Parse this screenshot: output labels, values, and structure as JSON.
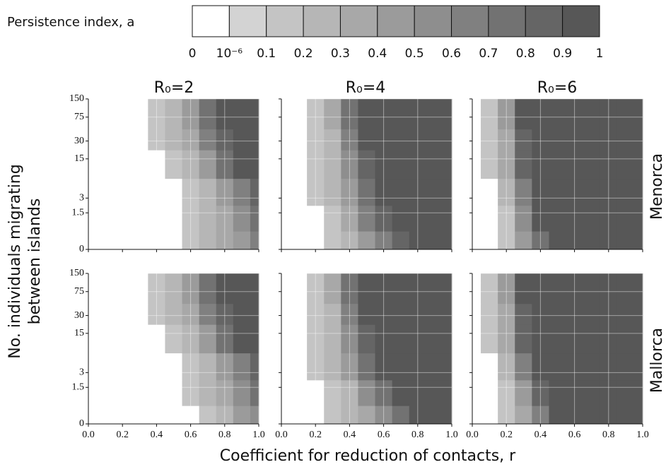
{
  "colorbar": {
    "label": "Persistence index, a",
    "ticks": [
      0,
      {
        "value": 1e-06,
        "label": "10⁻⁶"
      },
      0.1,
      0.2,
      0.3,
      0.4,
      0.5,
      0.6,
      0.7,
      0.8,
      0.9,
      1
    ],
    "colors": [
      "#ffffff",
      "#d3d3d3",
      "#c4c4c4",
      "#b6b6b6",
      "#a8a8a8",
      "#9b9b9b",
      "#8e8e8e",
      "#808080",
      "#727272",
      "#656565",
      "#575757"
    ]
  },
  "xlabel": "Coefficient for reduction of contacts, r",
  "ylabel": [
    "No. individuals migrating",
    "between islands"
  ],
  "column_titles": [
    "R₀=2",
    "R₀=4",
    "R₀=6"
  ],
  "row_labels": [
    "Menorca",
    "Mallorca"
  ],
  "chart_data": [
    {
      "type": "contour",
      "x": [
        0,
        0.1,
        0.2,
        0.3,
        0.4,
        0.5,
        0.6,
        0.7,
        0.8,
        0.9,
        1
      ],
      "y": [
        0,
        1.5,
        3,
        15,
        30,
        75,
        150
      ],
      "z": [
        [
          0,
          0,
          0,
          0,
          0,
          0,
          0.05,
          0.1,
          0.2,
          0.35,
          0.5
        ],
        [
          0,
          0,
          0,
          0,
          0,
          0,
          0.05,
          0.1,
          0.25,
          0.45,
          0.65
        ],
        [
          0,
          0,
          0,
          0,
          0,
          0,
          0.05,
          0.15,
          0.35,
          0.55,
          0.75
        ],
        [
          0,
          0,
          0,
          0,
          0,
          0.05,
          0.15,
          0.35,
          0.6,
          0.8,
          0.9
        ],
        [
          0,
          0,
          0,
          0,
          0.05,
          0.1,
          0.25,
          0.5,
          0.75,
          0.9,
          0.95
        ],
        [
          0,
          0,
          0,
          0,
          0.05,
          0.1,
          0.3,
          0.6,
          0.85,
          0.95,
          0.95
        ],
        [
          0,
          0,
          0,
          0,
          0.05,
          0.1,
          0.3,
          0.6,
          0.85,
          0.95,
          0.95
        ]
      ],
      "xlim": [
        0,
        1
      ],
      "ylim": [
        0,
        150
      ],
      "xticks": [
        {
          "value": 0,
          "label": "0.0"
        },
        0.2,
        0.4,
        0.6,
        0.8,
        {
          "value": 1,
          "label": "1.0"
        }
      ],
      "yticks": [
        0,
        1.5,
        3,
        15,
        30,
        75,
        150
      ],
      "grid": true
    },
    {
      "type": "contour",
      "x": [
        0,
        0.1,
        0.2,
        0.3,
        0.4,
        0.5,
        0.6,
        0.7,
        0.8,
        0.9,
        1
      ],
      "y": [
        0,
        1.5,
        3,
        15,
        30,
        75,
        150
      ],
      "z": [
        [
          0,
          0,
          0,
          0.05,
          0.1,
          0.3,
          0.5,
          0.7,
          0.92,
          0.95,
          0.95
        ],
        [
          0,
          0,
          0,
          0.05,
          0.2,
          0.5,
          0.75,
          0.92,
          0.95,
          0.95,
          0.95
        ],
        [
          0,
          0,
          0.05,
          0.1,
          0.3,
          0.6,
          0.85,
          0.95,
          0.95,
          0.95,
          0.95
        ],
        [
          0,
          0,
          0.05,
          0.1,
          0.4,
          0.75,
          0.92,
          0.95,
          0.95,
          0.95,
          0.95
        ],
        [
          0,
          0,
          0.05,
          0.15,
          0.5,
          0.8,
          0.95,
          0.95,
          0.95,
          0.95,
          0.95
        ],
        [
          0,
          0,
          0.05,
          0.2,
          0.6,
          0.85,
          0.95,
          0.95,
          0.95,
          0.95,
          0.95
        ],
        [
          0,
          0,
          0.05,
          0.2,
          0.6,
          0.85,
          0.95,
          0.95,
          0.95,
          0.95,
          0.95
        ]
      ],
      "xlim": [
        0,
        1
      ],
      "ylim": [
        0,
        150
      ],
      "xticks": [
        {
          "value": 0,
          "label": "0.0"
        },
        0.2,
        0.4,
        0.6,
        0.8,
        {
          "value": 1,
          "label": "1.0"
        }
      ],
      "yticks": [
        0,
        1.5,
        3,
        15,
        30,
        75,
        150
      ],
      "grid": true
    },
    {
      "type": "contour",
      "x": [
        0,
        0.1,
        0.2,
        0.3,
        0.4,
        0.5,
        0.6,
        0.7,
        0.8,
        0.9,
        1
      ],
      "y": [
        0,
        1.5,
        3,
        15,
        30,
        75,
        150
      ],
      "z": [
        [
          0,
          0,
          0.05,
          0.3,
          0.65,
          0.92,
          0.95,
          0.95,
          0.95,
          0.95,
          0.95
        ],
        [
          0,
          0,
          0.05,
          0.4,
          0.8,
          0.95,
          0.95,
          0.95,
          0.95,
          0.95,
          0.95
        ],
        [
          0,
          0,
          0.1,
          0.5,
          0.85,
          0.95,
          0.95,
          0.95,
          0.95,
          0.95,
          0.95
        ],
        [
          0,
          0.05,
          0.2,
          0.7,
          0.92,
          0.95,
          0.95,
          0.95,
          0.95,
          0.95,
          0.95
        ],
        [
          0,
          0.05,
          0.25,
          0.75,
          0.95,
          0.95,
          0.95,
          0.95,
          0.95,
          0.95,
          0.95
        ],
        [
          0,
          0.05,
          0.3,
          0.8,
          0.95,
          0.95,
          0.95,
          0.95,
          0.95,
          0.95,
          0.95
        ],
        [
          0,
          0.05,
          0.3,
          0.8,
          0.95,
          0.95,
          0.95,
          0.95,
          0.95,
          0.95,
          0.95
        ]
      ],
      "xlim": [
        0,
        1
      ],
      "ylim": [
        0,
        150
      ],
      "xticks": [
        {
          "value": 0,
          "label": "0.0"
        },
        0.2,
        0.4,
        0.6,
        0.8,
        {
          "value": 1,
          "label": "1.0"
        }
      ],
      "yticks": [
        0,
        1.5,
        3,
        15,
        30,
        75,
        150
      ],
      "grid": true
    },
    {
      "type": "contour",
      "x": [
        0,
        0.1,
        0.2,
        0.3,
        0.4,
        0.5,
        0.6,
        0.7,
        0.8,
        0.9,
        1
      ],
      "y": [
        0,
        1.5,
        3,
        15,
        30,
        75,
        150
      ],
      "z": [
        [
          0,
          0,
          0,
          0,
          0,
          0,
          0,
          0.05,
          0.15,
          0.3,
          0.45
        ],
        [
          0,
          0,
          0,
          0,
          0,
          0,
          0.05,
          0.1,
          0.25,
          0.45,
          0.6
        ],
        [
          0,
          0,
          0,
          0,
          0,
          0,
          0.05,
          0.15,
          0.35,
          0.55,
          0.7
        ],
        [
          0,
          0,
          0,
          0,
          0,
          0.05,
          0.15,
          0.35,
          0.6,
          0.8,
          0.9
        ],
        [
          0,
          0,
          0,
          0,
          0.05,
          0.1,
          0.25,
          0.5,
          0.75,
          0.9,
          0.95
        ],
        [
          0,
          0,
          0,
          0,
          0.05,
          0.1,
          0.3,
          0.6,
          0.85,
          0.95,
          0.95
        ],
        [
          0,
          0,
          0,
          0,
          0.05,
          0.1,
          0.3,
          0.6,
          0.85,
          0.95,
          0.95
        ]
      ],
      "xlim": [
        0,
        1
      ],
      "ylim": [
        0,
        150
      ],
      "xticks": [
        {
          "value": 0,
          "label": "0.0"
        },
        0.2,
        0.4,
        0.6,
        0.8,
        {
          "value": 1,
          "label": "1.0"
        }
      ],
      "yticks": [
        0,
        1.5,
        3,
        15,
        30,
        75,
        150
      ],
      "grid": true
    },
    {
      "type": "contour",
      "x": [
        0,
        0.1,
        0.2,
        0.3,
        0.4,
        0.5,
        0.6,
        0.7,
        0.8,
        0.9,
        1
      ],
      "y": [
        0,
        1.5,
        3,
        15,
        30,
        75,
        150
      ],
      "z": [
        [
          0,
          0,
          0,
          0.05,
          0.1,
          0.2,
          0.4,
          0.6,
          0.8,
          0.92,
          0.95
        ],
        [
          0,
          0,
          0,
          0.05,
          0.15,
          0.4,
          0.65,
          0.85,
          0.92,
          0.95,
          0.95
        ],
        [
          0,
          0,
          0.05,
          0.1,
          0.3,
          0.6,
          0.85,
          0.95,
          0.95,
          0.95,
          0.95
        ],
        [
          0,
          0,
          0.05,
          0.1,
          0.4,
          0.75,
          0.92,
          0.95,
          0.95,
          0.95,
          0.95
        ],
        [
          0,
          0,
          0.05,
          0.15,
          0.5,
          0.8,
          0.95,
          0.95,
          0.95,
          0.95,
          0.95
        ],
        [
          0,
          0,
          0.05,
          0.2,
          0.6,
          0.85,
          0.95,
          0.95,
          0.95,
          0.95,
          0.95
        ],
        [
          0,
          0,
          0.05,
          0.2,
          0.6,
          0.85,
          0.95,
          0.95,
          0.95,
          0.95,
          0.95
        ]
      ],
      "xlim": [
        0,
        1
      ],
      "ylim": [
        0,
        150
      ],
      "xticks": [
        {
          "value": 0,
          "label": "0.0"
        },
        0.2,
        0.4,
        0.6,
        0.8,
        {
          "value": 1,
          "label": "1.0"
        }
      ],
      "yticks": [
        0,
        1.5,
        3,
        15,
        30,
        75,
        150
      ],
      "grid": true
    },
    {
      "type": "contour",
      "x": [
        0,
        0.1,
        0.2,
        0.3,
        0.4,
        0.5,
        0.6,
        0.7,
        0.8,
        0.9,
        1
      ],
      "y": [
        0,
        1.5,
        3,
        15,
        30,
        75,
        150
      ],
      "z": [
        [
          0,
          0,
          0.05,
          0.2,
          0.5,
          0.85,
          0.92,
          0.95,
          0.95,
          0.95,
          0.95
        ],
        [
          0,
          0,
          0.05,
          0.3,
          0.7,
          0.92,
          0.95,
          0.95,
          0.95,
          0.95,
          0.95
        ],
        [
          0,
          0,
          0.1,
          0.5,
          0.85,
          0.95,
          0.95,
          0.95,
          0.95,
          0.95,
          0.95
        ],
        [
          0,
          0.05,
          0.2,
          0.7,
          0.92,
          0.95,
          0.95,
          0.95,
          0.95,
          0.95,
          0.95
        ],
        [
          0,
          0.05,
          0.25,
          0.75,
          0.95,
          0.95,
          0.95,
          0.95,
          0.95,
          0.95,
          0.95
        ],
        [
          0,
          0.05,
          0.3,
          0.8,
          0.95,
          0.95,
          0.95,
          0.95,
          0.95,
          0.95,
          0.95
        ],
        [
          0,
          0.05,
          0.3,
          0.8,
          0.95,
          0.95,
          0.95,
          0.95,
          0.95,
          0.95,
          0.95
        ]
      ],
      "xlim": [
        0,
        1
      ],
      "ylim": [
        0,
        150
      ],
      "xticks": [
        {
          "value": 0,
          "label": "0.0"
        },
        0.2,
        0.4,
        0.6,
        0.8,
        {
          "value": 1,
          "label": "1.0"
        }
      ],
      "yticks": [
        0,
        1.5,
        3,
        15,
        30,
        75,
        150
      ],
      "grid": true
    }
  ]
}
